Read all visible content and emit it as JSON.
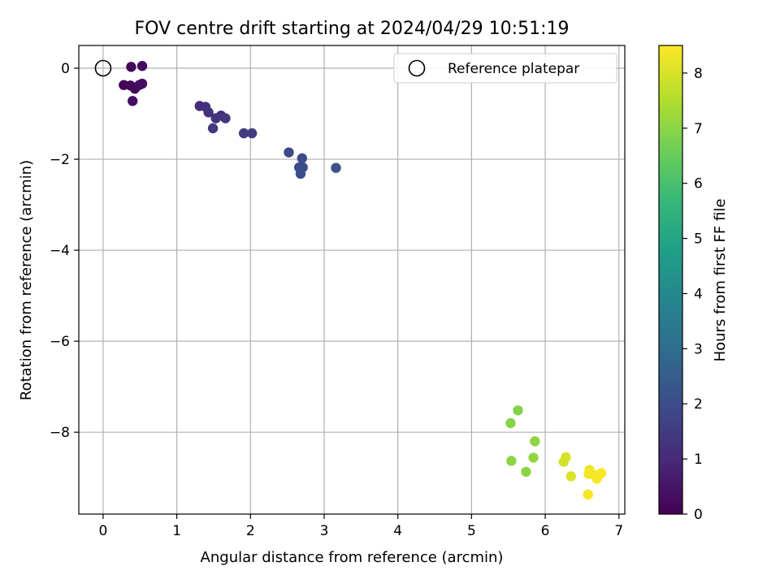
{
  "chart_data": {
    "type": "scatter",
    "title": "FOV centre drift starting at 2024/04/29 10:51:19",
    "xlabel": "Angular distance from reference (arcmin)",
    "ylabel": "Rotation from reference (arcmin)",
    "xlim": [
      -0.33,
      7.08
    ],
    "ylim": [
      -9.8,
      0.5
    ],
    "xticks": [
      0,
      1,
      2,
      3,
      4,
      5,
      6,
      7
    ],
    "yticks": [
      0,
      -2,
      -4,
      -6,
      -8
    ],
    "xtick_labels": [
      "0",
      "1",
      "2",
      "3",
      "4",
      "5",
      "6",
      "7"
    ],
    "ytick_labels": [
      "0",
      "−2",
      "−4",
      "−6",
      "−8"
    ],
    "grid": true,
    "legend": {
      "placement": "top-right",
      "entries": [
        {
          "label": "Reference platepar",
          "marker": "open-circle"
        }
      ]
    },
    "reference_point": {
      "x": 0,
      "y": 0
    },
    "colorbar": {
      "label": "Hours from first FF file",
      "range": [
        0,
        8.5
      ],
      "ticks": [
        0,
        1,
        2,
        3,
        4,
        5,
        6,
        7,
        8
      ],
      "tick_labels": [
        "0",
        "1",
        "2",
        "3",
        "4",
        "5",
        "6",
        "7",
        "8"
      ],
      "colormap": "viridis",
      "stops": [
        "#440154",
        "#482878",
        "#3e4989",
        "#31688e",
        "#26828e",
        "#1f9e89",
        "#35b779",
        "#6ece58",
        "#b5de2b",
        "#fde725"
      ]
    },
    "points": [
      {
        "x": 0.38,
        "y": 0.03,
        "t": 0.15
      },
      {
        "x": 0.53,
        "y": 0.05,
        "t": 0.25
      },
      {
        "x": 0.28,
        "y": -0.37,
        "t": 0.1
      },
      {
        "x": 0.37,
        "y": -0.38,
        "t": 0.15
      },
      {
        "x": 0.43,
        "y": -0.45,
        "t": 0.2
      },
      {
        "x": 0.49,
        "y": -0.37,
        "t": 0.25
      },
      {
        "x": 0.53,
        "y": -0.34,
        "t": 0.3
      },
      {
        "x": 0.4,
        "y": -0.72,
        "t": 0.35
      },
      {
        "x": 1.31,
        "y": -0.83,
        "t": 1.1
      },
      {
        "x": 1.39,
        "y": -0.85,
        "t": 1.15
      },
      {
        "x": 1.43,
        "y": -0.97,
        "t": 1.2
      },
      {
        "x": 1.53,
        "y": -1.1,
        "t": 1.25
      },
      {
        "x": 1.6,
        "y": -1.04,
        "t": 1.3
      },
      {
        "x": 1.66,
        "y": -1.1,
        "t": 1.35
      },
      {
        "x": 1.49,
        "y": -1.32,
        "t": 1.4
      },
      {
        "x": 1.91,
        "y": -1.43,
        "t": 1.5
      },
      {
        "x": 2.02,
        "y": -1.43,
        "t": 1.55
      },
      {
        "x": 2.52,
        "y": -1.85,
        "t": 1.9
      },
      {
        "x": 2.7,
        "y": -1.98,
        "t": 1.95
      },
      {
        "x": 2.66,
        "y": -2.18,
        "t": 2.0
      },
      {
        "x": 2.71,
        "y": -2.18,
        "t": 2.05
      },
      {
        "x": 2.68,
        "y": -2.32,
        "t": 2.1
      },
      {
        "x": 3.16,
        "y": -2.19,
        "t": 2.15
      },
      {
        "x": 5.63,
        "y": -7.52,
        "t": 6.9
      },
      {
        "x": 5.53,
        "y": -7.8,
        "t": 6.95
      },
      {
        "x": 5.86,
        "y": -8.2,
        "t": 7.05
      },
      {
        "x": 5.84,
        "y": -8.56,
        "t": 7.1
      },
      {
        "x": 5.54,
        "y": -8.63,
        "t": 7.0
      },
      {
        "x": 5.74,
        "y": -8.87,
        "t": 7.0
      },
      {
        "x": 6.28,
        "y": -8.55,
        "t": 8.0
      },
      {
        "x": 6.25,
        "y": -8.65,
        "t": 7.95
      },
      {
        "x": 6.35,
        "y": -8.97,
        "t": 8.05
      },
      {
        "x": 6.6,
        "y": -8.83,
        "t": 8.3
      },
      {
        "x": 6.59,
        "y": -8.92,
        "t": 8.35
      },
      {
        "x": 6.68,
        "y": -8.95,
        "t": 8.4
      },
      {
        "x": 6.7,
        "y": -9.02,
        "t": 8.4
      },
      {
        "x": 6.76,
        "y": -8.9,
        "t": 8.45
      },
      {
        "x": 6.58,
        "y": -9.37,
        "t": 8.4
      }
    ]
  }
}
